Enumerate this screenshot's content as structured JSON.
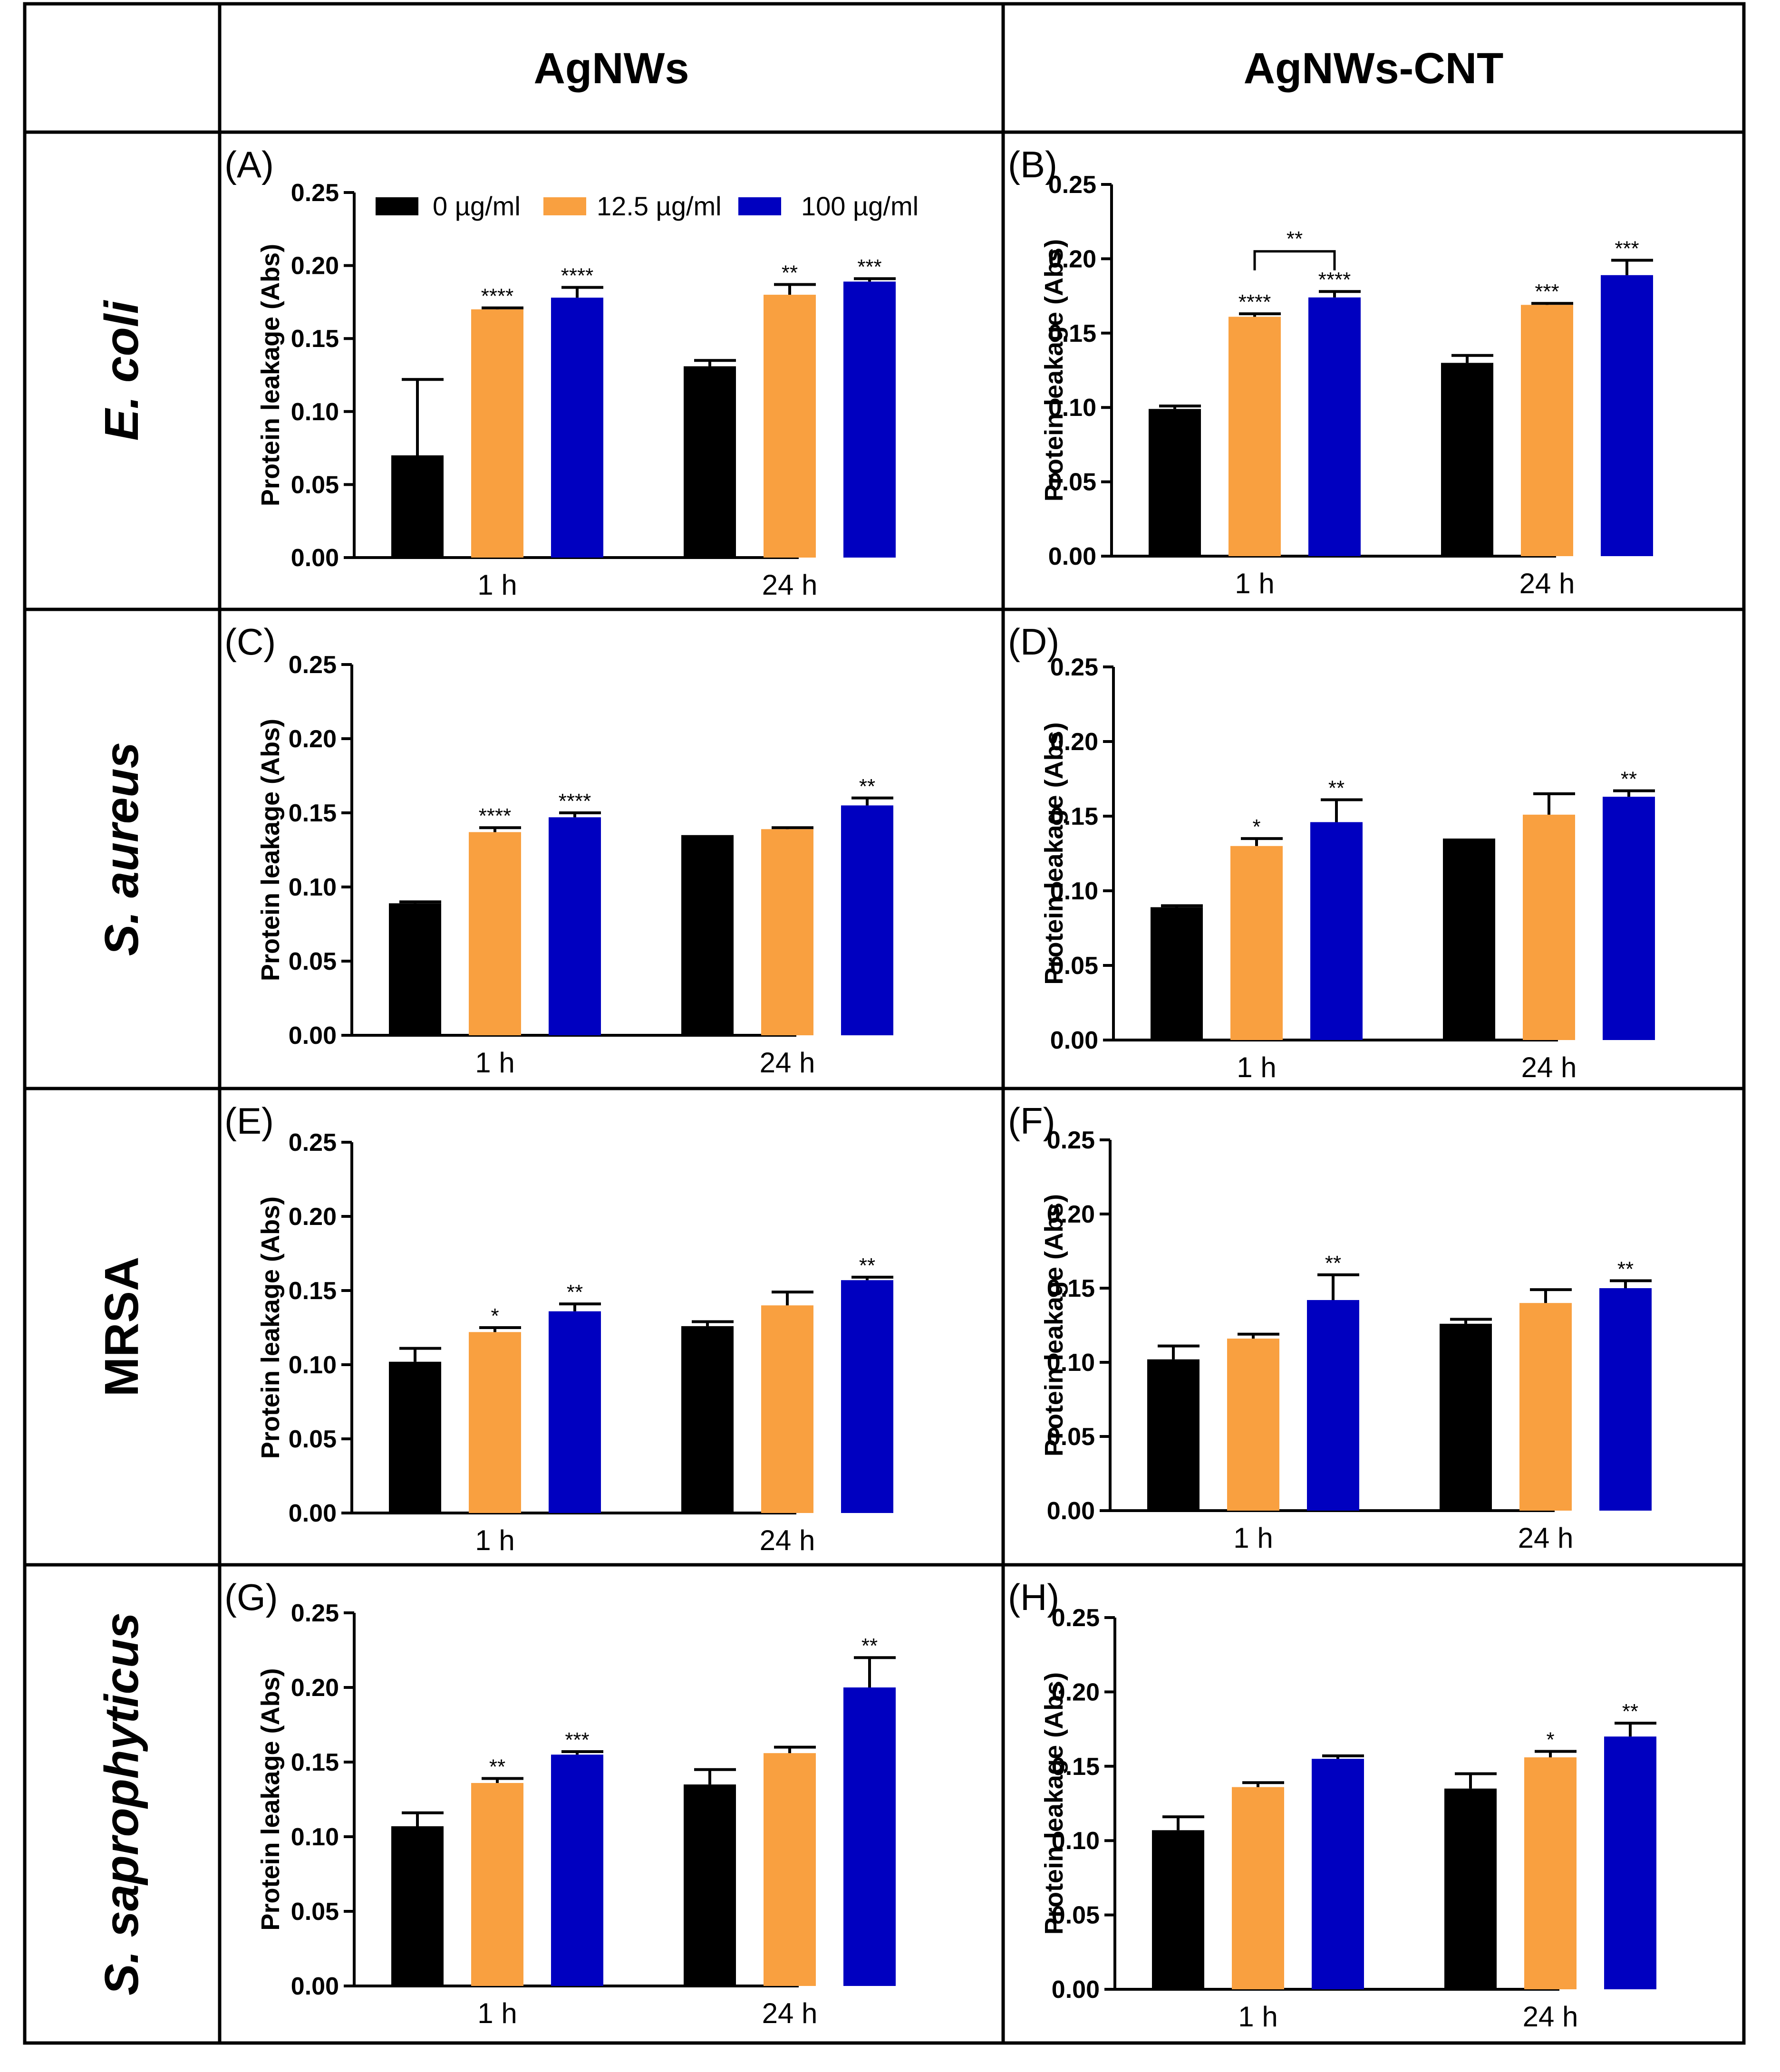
{
  "column_headers": [
    "AgNWs",
    "AgNWs-CNT"
  ],
  "row_headers": [
    "E. coli",
    "S. aureus",
    "MRSA",
    "S. saprophyticus"
  ],
  "legend": [
    {
      "label": "0 µg/ml",
      "color": "#000000"
    },
    {
      "label": "12.5 µg/ml",
      "color": "#F9A040"
    },
    {
      "label": "100 µg/ml",
      "color": "#0000C0"
    }
  ],
  "chart_data": [
    {
      "panel": "(A)",
      "type": "bar",
      "ylabel": "Protein leakage (Abs)",
      "ylim": [
        0,
        0.25
      ],
      "yticks": [
        "0.00",
        "0.05",
        "0.10",
        "0.15",
        "0.20",
        "0.25"
      ],
      "categories": [
        "1 h",
        "24 h"
      ],
      "series": [
        {
          "name": "0 µg/ml",
          "values": [
            0.07,
            0.131
          ],
          "errors": [
            0.052,
            0.004
          ],
          "sig": [
            "",
            ""
          ]
        },
        {
          "name": "12.5 µg/ml",
          "values": [
            0.17,
            0.18
          ],
          "errors": [
            0.001,
            0.007
          ],
          "sig": [
            "****",
            "**"
          ]
        },
        {
          "name": "100 µg/ml",
          "values": [
            0.178,
            0.189
          ],
          "errors": [
            0.007,
            0.002
          ],
          "sig": [
            "****",
            "***"
          ]
        }
      ]
    },
    {
      "panel": "(B)",
      "type": "bar",
      "ylabel": "Protein leakage (Abs)",
      "ylim": [
        0,
        0.25
      ],
      "yticks": [
        "0.00",
        "0.05",
        "0.10",
        "0.15",
        "0.20",
        "0.25"
      ],
      "categories": [
        "1 h",
        "24 h"
      ],
      "bracket": {
        "label": "**",
        "between": [
          "12.5 µg/ml",
          "100 µg/ml"
        ],
        "category": "1 h"
      },
      "series": [
        {
          "name": "0 µg/ml",
          "values": [
            0.099,
            0.13
          ],
          "errors": [
            0.002,
            0.005
          ],
          "sig": [
            "",
            ""
          ]
        },
        {
          "name": "12.5 µg/ml",
          "values": [
            0.161,
            0.169
          ],
          "errors": [
            0.002,
            0.001
          ],
          "sig": [
            "****",
            "***"
          ]
        },
        {
          "name": "100 µg/ml",
          "values": [
            0.174,
            0.189
          ],
          "errors": [
            0.004,
            0.01
          ],
          "sig": [
            "****",
            "***"
          ]
        }
      ]
    },
    {
      "panel": "(C)",
      "type": "bar",
      "ylabel": "Protein leakage (Abs)",
      "ylim": [
        0,
        0.25
      ],
      "yticks": [
        "0.00",
        "0.05",
        "0.10",
        "0.15",
        "0.20",
        "0.25"
      ],
      "categories": [
        "1 h",
        "24 h"
      ],
      "series": [
        {
          "name": "0 µg/ml",
          "values": [
            0.089,
            0.135
          ],
          "errors": [
            0.001,
            0.0
          ],
          "sig": [
            "",
            ""
          ]
        },
        {
          "name": "12.5 µg/ml",
          "values": [
            0.137,
            0.139
          ],
          "errors": [
            0.003,
            0.001
          ],
          "sig": [
            "****",
            ""
          ]
        },
        {
          "name": "100 µg/ml",
          "values": [
            0.147,
            0.155
          ],
          "errors": [
            0.003,
            0.005
          ],
          "sig": [
            "****",
            "**"
          ]
        }
      ]
    },
    {
      "panel": "(D)",
      "type": "bar",
      "ylabel": "Protein leakage (Abs)",
      "ylim": [
        0,
        0.25
      ],
      "yticks": [
        "0.00",
        "0.05",
        "0.10",
        "0.15",
        "0.20",
        "0.25"
      ],
      "categories": [
        "1 h",
        "24 h"
      ],
      "series": [
        {
          "name": "0 µg/ml",
          "values": [
            0.089,
            0.135
          ],
          "errors": [
            0.001,
            0.0
          ],
          "sig": [
            "",
            ""
          ]
        },
        {
          "name": "12.5 µg/ml",
          "values": [
            0.13,
            0.151
          ],
          "errors": [
            0.005,
            0.014
          ],
          "sig": [
            "*",
            ""
          ]
        },
        {
          "name": "100 µg/ml",
          "values": [
            0.146,
            0.163
          ],
          "errors": [
            0.015,
            0.004
          ],
          "sig": [
            "**",
            "**"
          ]
        }
      ]
    },
    {
      "panel": "(E)",
      "type": "bar",
      "ylabel": "Protein leakage (Abs)",
      "ylim": [
        0,
        0.25
      ],
      "yticks": [
        "0.00",
        "0.05",
        "0.10",
        "0.15",
        "0.20",
        "0.25"
      ],
      "categories": [
        "1 h",
        "24 h"
      ],
      "series": [
        {
          "name": "0 µg/ml",
          "values": [
            0.102,
            0.126
          ],
          "errors": [
            0.009,
            0.003
          ],
          "sig": [
            "",
            ""
          ]
        },
        {
          "name": "12.5 µg/ml",
          "values": [
            0.122,
            0.14
          ],
          "errors": [
            0.003,
            0.009
          ],
          "sig": [
            "*",
            ""
          ]
        },
        {
          "name": "100 µg/ml",
          "values": [
            0.136,
            0.157
          ],
          "errors": [
            0.005,
            0.002
          ],
          "sig": [
            "**",
            "**"
          ]
        }
      ]
    },
    {
      "panel": "(F)",
      "type": "bar",
      "ylabel": "Protein leakage (Abs)",
      "ylim": [
        0,
        0.25
      ],
      "yticks": [
        "0.00",
        "0.05",
        "0.10",
        "0.15",
        "0.20",
        "0.25"
      ],
      "categories": [
        "1 h",
        "24 h"
      ],
      "series": [
        {
          "name": "0 µg/ml",
          "values": [
            0.102,
            0.126
          ],
          "errors": [
            0.009,
            0.003
          ],
          "sig": [
            "",
            ""
          ]
        },
        {
          "name": "12.5 µg/ml",
          "values": [
            0.116,
            0.14
          ],
          "errors": [
            0.003,
            0.009
          ],
          "sig": [
            "",
            ""
          ]
        },
        {
          "name": "100 µg/ml",
          "values": [
            0.142,
            0.15
          ],
          "errors": [
            0.017,
            0.005
          ],
          "sig": [
            "**",
            "**"
          ]
        }
      ]
    },
    {
      "panel": "(G)",
      "type": "bar",
      "ylabel": "Protein leakage (Abs)",
      "ylim": [
        0,
        0.25
      ],
      "yticks": [
        "0.00",
        "0.05",
        "0.10",
        "0.15",
        "0.20",
        "0.25"
      ],
      "categories": [
        "1 h",
        "24 h"
      ],
      "series": [
        {
          "name": "0 µg/ml",
          "values": [
            0.107,
            0.135
          ],
          "errors": [
            0.009,
            0.01
          ],
          "sig": [
            "",
            ""
          ]
        },
        {
          "name": "12.5 µg/ml",
          "values": [
            0.136,
            0.156
          ],
          "errors": [
            0.003,
            0.004
          ],
          "sig": [
            "**",
            ""
          ]
        },
        {
          "name": "100 µg/ml",
          "values": [
            0.155,
            0.2
          ],
          "errors": [
            0.002,
            0.02
          ],
          "sig": [
            "***",
            "**"
          ]
        }
      ]
    },
    {
      "panel": "(H)",
      "type": "bar",
      "ylabel": "Protein leakage (Abs)",
      "ylim": [
        0,
        0.25
      ],
      "yticks": [
        "0.00",
        "0.05",
        "0.10",
        "0.15",
        "0.20",
        "0.25"
      ],
      "categories": [
        "1 h",
        "24 h"
      ],
      "series": [
        {
          "name": "0 µg/ml",
          "values": [
            0.107,
            0.135
          ],
          "errors": [
            0.009,
            0.01
          ],
          "sig": [
            "",
            ""
          ]
        },
        {
          "name": "12.5 µg/ml",
          "values": [
            0.136,
            0.156
          ],
          "errors": [
            0.003,
            0.004
          ],
          "sig": [
            "",
            "*"
          ]
        },
        {
          "name": "100 µg/ml",
          "values": [
            0.155,
            0.17
          ],
          "errors": [
            0.002,
            0.009
          ],
          "sig": [
            "",
            "**"
          ]
        }
      ]
    }
  ]
}
